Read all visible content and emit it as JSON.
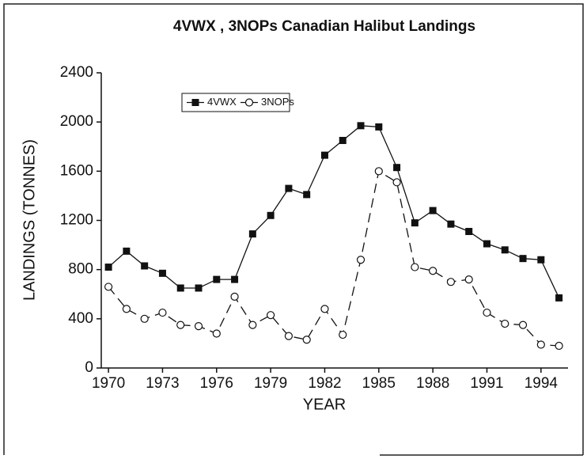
{
  "chart_data": {
    "type": "line",
    "title": "4VWX , 3NOPs Canadian Halibut Landings",
    "xlabel": "YEAR",
    "ylabel": "LANDINGS (TONNES)",
    "x": [
      1970,
      1971,
      1972,
      1973,
      1974,
      1975,
      1976,
      1977,
      1978,
      1979,
      1980,
      1981,
      1982,
      1983,
      1984,
      1985,
      1986,
      1987,
      1988,
      1989,
      1990,
      1991,
      1992,
      1993,
      1994,
      1995
    ],
    "series": [
      {
        "name": "4VWX",
        "color": "#111111",
        "marker": "square",
        "dashed": false,
        "values": [
          820,
          950,
          830,
          770,
          650,
          650,
          720,
          720,
          1090,
          1240,
          1460,
          1410,
          1730,
          1850,
          1970,
          1960,
          1630,
          1180,
          1280,
          1170,
          1110,
          1010,
          960,
          890,
          880,
          570
        ]
      },
      {
        "name": "3NOPs",
        "color": "#111111",
        "marker": "circle",
        "dashed": true,
        "values": [
          660,
          480,
          400,
          450,
          350,
          340,
          280,
          580,
          350,
          430,
          260,
          230,
          480,
          270,
          880,
          1600,
          1510,
          820,
          790,
          700,
          720,
          450,
          360,
          350,
          190,
          180
        ]
      }
    ],
    "xlim": [
      1969.6,
      1995.5
    ],
    "xticks": [
      1970,
      1973,
      1976,
      1979,
      1982,
      1985,
      1988,
      1991,
      1994
    ],
    "ylim": [
      0,
      2400
    ],
    "yticks": [
      0,
      400,
      800,
      1200,
      1600,
      2000,
      2400
    ],
    "legend": "upper left"
  }
}
